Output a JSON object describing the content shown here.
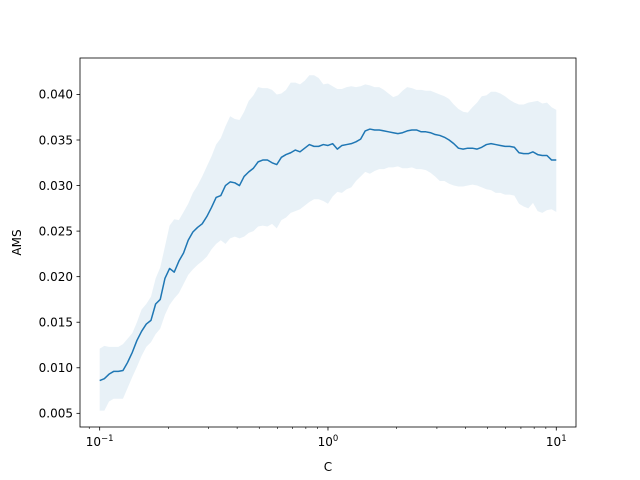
{
  "chart_data": {
    "type": "line",
    "title": "",
    "xlabel": "C",
    "ylabel": "AMS",
    "xscale": "log",
    "xlim": [
      0.082,
      12.2
    ],
    "ylim": [
      0.0035,
      0.044
    ],
    "grid": false,
    "legend": "none",
    "xticks": [
      {
        "value": 0.1,
        "base": "10",
        "exp": "−1"
      },
      {
        "value": 1,
        "base": "10",
        "exp": "0"
      },
      {
        "value": 10,
        "base": "10",
        "exp": "1"
      }
    ],
    "yticks": [
      {
        "value": 0.005,
        "label": "0.005"
      },
      {
        "value": 0.01,
        "label": "0.010"
      },
      {
        "value": 0.015,
        "label": "0.015"
      },
      {
        "value": 0.02,
        "label": "0.020"
      },
      {
        "value": 0.025,
        "label": "0.025"
      },
      {
        "value": 0.03,
        "label": "0.030"
      },
      {
        "value": 0.035,
        "label": "0.035"
      },
      {
        "value": 0.04,
        "label": "0.040"
      }
    ],
    "line_color": "#1f77b4",
    "band_color": "#1f77b4",
    "series": [
      {
        "x": [
          0.1,
          0.1048,
          0.1099,
          0.1151,
          0.1207,
          0.1265,
          0.1326,
          0.139,
          0.1456,
          0.1526,
          0.16,
          0.1677,
          0.1758,
          0.1842,
          0.1931,
          0.2024,
          0.2121,
          0.2223,
          0.233,
          0.2442,
          0.256,
          0.2683,
          0.2812,
          0.2947,
          0.3089,
          0.3237,
          0.3393,
          0.3556,
          0.3728,
          0.3907,
          0.4095,
          0.4292,
          0.4498,
          0.4715,
          0.4942,
          0.5179,
          0.5429,
          0.569,
          0.5964,
          0.6251,
          0.6551,
          0.6866,
          0.7197,
          0.7543,
          0.7906,
          0.8286,
          0.8685,
          0.9103,
          0.9541,
          1.0,
          1.048,
          1.099,
          1.151,
          1.207,
          1.265,
          1.326,
          1.39,
          1.456,
          1.526,
          1.6,
          1.677,
          1.758,
          1.842,
          1.931,
          2.024,
          2.121,
          2.223,
          2.33,
          2.442,
          2.56,
          2.683,
          2.812,
          2.947,
          3.089,
          3.237,
          3.393,
          3.556,
          3.728,
          3.907,
          4.095,
          4.292,
          4.498,
          4.715,
          4.942,
          5.179,
          5.429,
          5.69,
          5.964,
          6.251,
          6.551,
          6.866,
          7.197,
          7.543,
          7.906,
          8.286,
          8.685,
          9.103,
          9.541,
          10.0
        ],
        "y": [
          0.0086,
          0.0088,
          0.0093,
          0.0096,
          0.0096,
          0.0097,
          0.0106,
          0.0117,
          0.013,
          0.014,
          0.0148,
          0.0152,
          0.017,
          0.0175,
          0.0198,
          0.0209,
          0.0205,
          0.0217,
          0.0226,
          0.024,
          0.0249,
          0.0254,
          0.0258,
          0.0266,
          0.0276,
          0.0287,
          0.0289,
          0.03,
          0.0304,
          0.0303,
          0.03,
          0.031,
          0.0315,
          0.0319,
          0.0326,
          0.0328,
          0.0328,
          0.0325,
          0.0323,
          0.0331,
          0.0334,
          0.0336,
          0.0339,
          0.0337,
          0.0341,
          0.0345,
          0.0343,
          0.0343,
          0.0345,
          0.0344,
          0.0346,
          0.034,
          0.0344,
          0.0345,
          0.0346,
          0.0348,
          0.0351,
          0.036,
          0.0362,
          0.0361,
          0.0361,
          0.036,
          0.0359,
          0.0358,
          0.0357,
          0.0358,
          0.036,
          0.0361,
          0.0361,
          0.0359,
          0.0359,
          0.0358,
          0.0356,
          0.0355,
          0.0353,
          0.035,
          0.0346,
          0.0341,
          0.034,
          0.0341,
          0.0341,
          0.034,
          0.0342,
          0.0345,
          0.0346,
          0.0345,
          0.0344,
          0.0343,
          0.0343,
          0.0342,
          0.0336,
          0.0335,
          0.0335,
          0.0337,
          0.0334,
          0.0333,
          0.0333,
          0.0328,
          0.0328
        ],
        "lower": [
          0.0053,
          0.0053,
          0.0063,
          0.0066,
          0.0066,
          0.0066,
          0.0078,
          0.009,
          0.0101,
          0.0113,
          0.0123,
          0.0128,
          0.0137,
          0.0143,
          0.0158,
          0.0169,
          0.0176,
          0.0182,
          0.0192,
          0.0202,
          0.0208,
          0.0213,
          0.0217,
          0.0222,
          0.023,
          0.0236,
          0.024,
          0.0236,
          0.0242,
          0.0244,
          0.0242,
          0.0244,
          0.0248,
          0.025,
          0.0255,
          0.0256,
          0.0255,
          0.0258,
          0.0253,
          0.0262,
          0.0265,
          0.027,
          0.0272,
          0.0274,
          0.0278,
          0.0282,
          0.0285,
          0.0285,
          0.0283,
          0.028,
          0.0288,
          0.0293,
          0.0292,
          0.0296,
          0.0298,
          0.0305,
          0.031,
          0.0315,
          0.0313,
          0.0316,
          0.0318,
          0.0318,
          0.032,
          0.032,
          0.0321,
          0.0319,
          0.0319,
          0.032,
          0.0318,
          0.0318,
          0.0317,
          0.0314,
          0.031,
          0.0305,
          0.0305,
          0.0302,
          0.03,
          0.0299,
          0.0299,
          0.03,
          0.0301,
          0.03,
          0.0298,
          0.0296,
          0.0295,
          0.0292,
          0.0292,
          0.029,
          0.029,
          0.0289,
          0.028,
          0.0277,
          0.0275,
          0.0281,
          0.0272,
          0.027,
          0.0273,
          0.0274,
          0.0271
        ],
        "upper": [
          0.0121,
          0.0124,
          0.0123,
          0.0123,
          0.0123,
          0.0126,
          0.0132,
          0.0138,
          0.015,
          0.0164,
          0.017,
          0.0178,
          0.0198,
          0.021,
          0.0233,
          0.0256,
          0.0263,
          0.0262,
          0.0271,
          0.028,
          0.0292,
          0.03,
          0.031,
          0.0321,
          0.0332,
          0.0345,
          0.0352,
          0.0365,
          0.0376,
          0.0373,
          0.0372,
          0.0381,
          0.0393,
          0.0399,
          0.0408,
          0.0407,
          0.0407,
          0.0405,
          0.04,
          0.0401,
          0.0405,
          0.0413,
          0.0413,
          0.0411,
          0.0415,
          0.0421,
          0.0421,
          0.0418,
          0.0411,
          0.0412,
          0.0409,
          0.0406,
          0.0406,
          0.0408,
          0.0409,
          0.0408,
          0.0409,
          0.0411,
          0.041,
          0.0408,
          0.0408,
          0.0405,
          0.0401,
          0.0397,
          0.0399,
          0.0404,
          0.0408,
          0.0407,
          0.0405,
          0.0405,
          0.0404,
          0.0404,
          0.0402,
          0.04,
          0.0398,
          0.0395,
          0.0389,
          0.0384,
          0.0381,
          0.038,
          0.0386,
          0.0391,
          0.0398,
          0.0399,
          0.0403,
          0.0403,
          0.0401,
          0.0398,
          0.0394,
          0.0391,
          0.0389,
          0.0389,
          0.0391,
          0.0392,
          0.0393,
          0.039,
          0.0391,
          0.0386,
          0.0383
        ]
      }
    ]
  }
}
